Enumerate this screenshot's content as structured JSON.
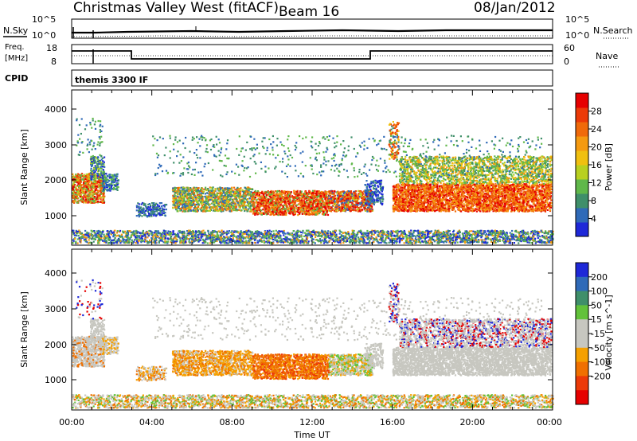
{
  "header": {
    "station": "Christmas Valley West (fitACF)",
    "beam": "Beam 16",
    "date": "08/Jan/2012"
  },
  "status_panels": {
    "nsky_label": "N.Sky",
    "nsearch_label": "N.Search",
    "noise_ticks": [
      "10^5",
      "10^0"
    ],
    "freq_label": "Freq.",
    "freq_unit": "[MHz]",
    "freq_ticks": [
      "18",
      "8"
    ],
    "nave_label": "Nave",
    "nave_ticks": [
      "60",
      "0"
    ],
    "cpid_label": "CPID",
    "cpid_value": "themis 3300 IF"
  },
  "colors": {
    "power_scale": [
      "#1e28d8",
      "#2f6ab8",
      "#3f8f6a",
      "#60b84a",
      "#b8d020",
      "#f0c010",
      "#f59a10",
      "#f06a0a",
      "#ec3a08",
      "#e60000"
    ],
    "velocity_scale": [
      "#1e28d8",
      "#2f6ab8",
      "#3f8f6a",
      "#62c23a",
      "#c7c7c0",
      "#c7c7c0",
      "#f5a000",
      "#f07000",
      "#ec3a08",
      "#e60000"
    ]
  },
  "chart_data": [
    {
      "type": "heatmap",
      "name": "power",
      "xlabel": "",
      "ylabel": "Slant Range [km]",
      "y_ticks": [
        "1000",
        "2000",
        "3000",
        "4000"
      ],
      "colorbar_label": "Power [dB]",
      "colorbar_ticks": [
        "4",
        "8",
        "12",
        "16",
        "20",
        "24",
        "28"
      ],
      "colorbar_range": [
        0,
        32
      ]
    },
    {
      "type": "heatmap",
      "name": "velocity",
      "xlabel": "Time UT",
      "ylabel": "Slant Range [km]",
      "x_ticks": [
        "00:00",
        "04:00",
        "08:00",
        "12:00",
        "16:00",
        "20:00",
        "00:00"
      ],
      "y_ticks": [
        "1000",
        "2000",
        "3000",
        "4000"
      ],
      "colorbar_label": "Velocity [m s^-1]",
      "colorbar_ticks": [
        "200",
        "100",
        "50",
        "15",
        "-15",
        "-50",
        "-100",
        "-200"
      ]
    }
  ]
}
